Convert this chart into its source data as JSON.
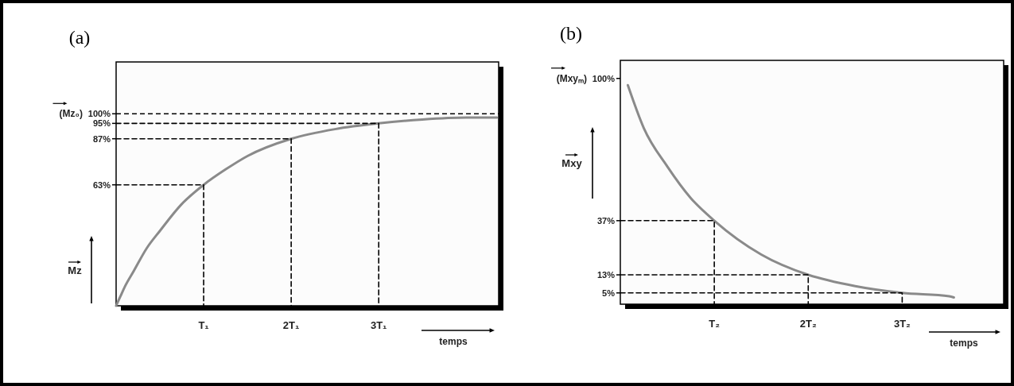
{
  "chart_data": [
    {
      "type": "line",
      "title": "(a)",
      "xlabel": "temps",
      "ylabel": "Mz",
      "xlim": [
        0,
        4.37
      ],
      "ylim": [
        0,
        127
      ],
      "xticks": [
        {
          "value": 1,
          "label": "T₁"
        },
        {
          "value": 2,
          "label": "2T₁"
        },
        {
          "value": 3,
          "label": "3T₁"
        }
      ],
      "yticks": [
        {
          "value": 63,
          "label": "63%"
        },
        {
          "value": 87,
          "label": "87%"
        },
        {
          "value": 95,
          "label": "95%"
        },
        {
          "value": 100,
          "label": "100%"
        }
      ],
      "series": [
        {
          "color": "#8a8a8a",
          "x": [
            0,
            0.05,
            0.1,
            0.2,
            0.35,
            0.5,
            0.75,
            1,
            1.25,
            1.5,
            2,
            2.5,
            3,
            3.5,
            4,
            4.35
          ],
          "values": [
            0,
            5,
            10,
            18,
            30,
            39,
            53,
            63,
            71,
            78,
            87,
            92,
            95,
            97,
            98,
            98
          ]
        },
        {
          "color": "#000000",
          "line_style": "dashed",
          "x": [
            0,
            1,
            1
          ],
          "values": [
            63,
            63,
            0
          ]
        },
        {
          "color": "#000000",
          "line_style": "dashed",
          "x": [
            0,
            2,
            2
          ],
          "values": [
            87,
            87,
            0
          ]
        },
        {
          "color": "#000000",
          "line_style": "dashed",
          "x": [
            0,
            3,
            3
          ],
          "values": [
            95,
            95,
            0
          ]
        }
      ],
      "ref_lines": [
        {
          "axis": "y",
          "value": 100,
          "color": "#000000",
          "line_style": "dashed"
        }
      ],
      "annotations": [
        "(Mz₀)"
      ]
    },
    {
      "type": "line",
      "title": "(b)",
      "xlabel": "temps",
      "ylabel": "Mxy",
      "xlim": [
        0,
        4.08
      ],
      "ylim": [
        0,
        108
      ],
      "xticks": [
        {
          "value": 1,
          "label": "T₂"
        },
        {
          "value": 2,
          "label": "2T₂"
        },
        {
          "value": 3,
          "label": "3T₂"
        }
      ],
      "yticks": [
        {
          "value": 5,
          "label": "5%"
        },
        {
          "value": 13,
          "label": "13%"
        },
        {
          "value": 37,
          "label": "37%"
        },
        {
          "value": 100,
          "label": "100%"
        }
      ],
      "series": [
        {
          "color": "#8a8a8a",
          "x": [
            0.08,
            0.25,
            0.5,
            0.75,
            1,
            1.5,
            2,
            2.5,
            3,
            3.5,
            3.55
          ],
          "values": [
            97,
            78,
            61,
            47,
            37,
            22,
            13,
            8,
            5,
            3.5,
            3
          ]
        },
        {
          "color": "#000000",
          "line_style": "dashed",
          "x": [
            0,
            1,
            1
          ],
          "values": [
            37,
            37,
            0
          ]
        },
        {
          "color": "#000000",
          "line_style": "dashed",
          "x": [
            0,
            2,
            2
          ],
          "values": [
            13,
            13,
            0
          ]
        },
        {
          "color": "#000000",
          "line_style": "dashed",
          "x": [
            0,
            3,
            3
          ],
          "values": [
            5,
            5,
            0
          ]
        }
      ],
      "annotations": [
        "(Mxyₘ)"
      ]
    }
  ]
}
